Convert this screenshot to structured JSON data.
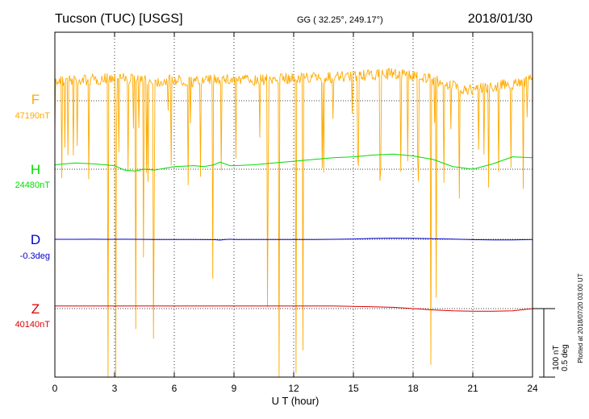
{
  "header": {
    "station": "Tucson (TUC)  [USGS]",
    "coords": "GG ( 32.25°, 249.17°)",
    "date": "2018/01/30"
  },
  "side_note": "Plotted at 2018/07/20 03:00 UT",
  "scale_bar": {
    "top": "100 nT",
    "bottom": "0.5 deg"
  },
  "chart_data": {
    "type": "line",
    "xlabel": "U T (hour)",
    "xlim": [
      0,
      24
    ],
    "xticks": [
      0,
      3,
      6,
      9,
      12,
      15,
      18,
      21,
      24
    ],
    "grid": "dotted vertical every 3 hours",
    "series": [
      {
        "name": "F",
        "baseline": "47190nT",
        "color": "#ffaa00",
        "x": [
          0,
          1,
          2,
          3,
          4,
          5,
          6,
          7,
          8,
          9,
          10,
          11,
          12,
          13,
          14,
          15,
          16,
          17,
          18,
          19,
          20,
          21,
          22,
          23,
          24
        ],
        "y": [
          47199,
          47200,
          47200,
          47201,
          47200,
          47199,
          47200,
          47199,
          47200,
          47200,
          47200,
          47200,
          47201,
          47201,
          47201,
          47202,
          47202,
          47203,
          47202,
          47200,
          47197,
          47195,
          47197,
          47198,
          47200
        ]
      },
      {
        "name": "H",
        "baseline": "24480nT",
        "color": "#00dd00",
        "x": [
          0,
          1,
          2,
          3,
          3.5,
          4,
          4.5,
          5,
          6,
          7,
          7.5,
          8,
          8.3,
          8.8,
          9,
          10,
          11,
          12,
          13,
          14,
          15,
          16,
          17,
          18,
          19,
          20,
          21,
          22,
          23,
          24
        ],
        "y": [
          24485,
          24487,
          24486,
          24484,
          24479,
          24478,
          24480,
          24479,
          24483,
          24484,
          24483,
          24485,
          24488,
          24484,
          24484,
          24485,
          24487,
          24489,
          24491,
          24493,
          24494,
          24496,
          24497,
          24495,
          24491,
          24483,
          24480,
          24486,
          24494,
          24493
        ]
      },
      {
        "name": "D",
        "baseline": "-0.3deg",
        "color": "#0000cc",
        "x": [
          0,
          1,
          2,
          3,
          3.5,
          4,
          5,
          6,
          7,
          8,
          8.3,
          8.5,
          8.8,
          9,
          10,
          11,
          12,
          13,
          14,
          15,
          16,
          17,
          18,
          19,
          20,
          21,
          22,
          23,
          24
        ],
        "y": [
          -0.3,
          -0.3,
          -0.299,
          -0.3,
          -0.298,
          -0.3,
          -0.304,
          -0.305,
          -0.305,
          -0.306,
          -0.316,
          -0.306,
          -0.299,
          -0.305,
          -0.305,
          -0.305,
          -0.305,
          -0.303,
          -0.3,
          -0.293,
          -0.281,
          -0.276,
          -0.279,
          -0.288,
          -0.297,
          -0.307,
          -0.313,
          -0.312,
          -0.305
        ]
      },
      {
        "name": "Z",
        "baseline": "40140nT",
        "color": "#dd0000",
        "x": [
          0,
          2,
          4,
          6,
          8,
          10,
          12,
          14,
          15,
          16,
          17,
          18,
          19,
          20,
          21,
          22,
          23,
          24
        ],
        "y": [
          40146,
          40146,
          40146,
          40146,
          40146,
          40146,
          40146,
          40146,
          40145,
          40144,
          40143,
          40140,
          40137,
          40135,
          40134,
          40134,
          40135,
          40140
        ]
      }
    ]
  }
}
